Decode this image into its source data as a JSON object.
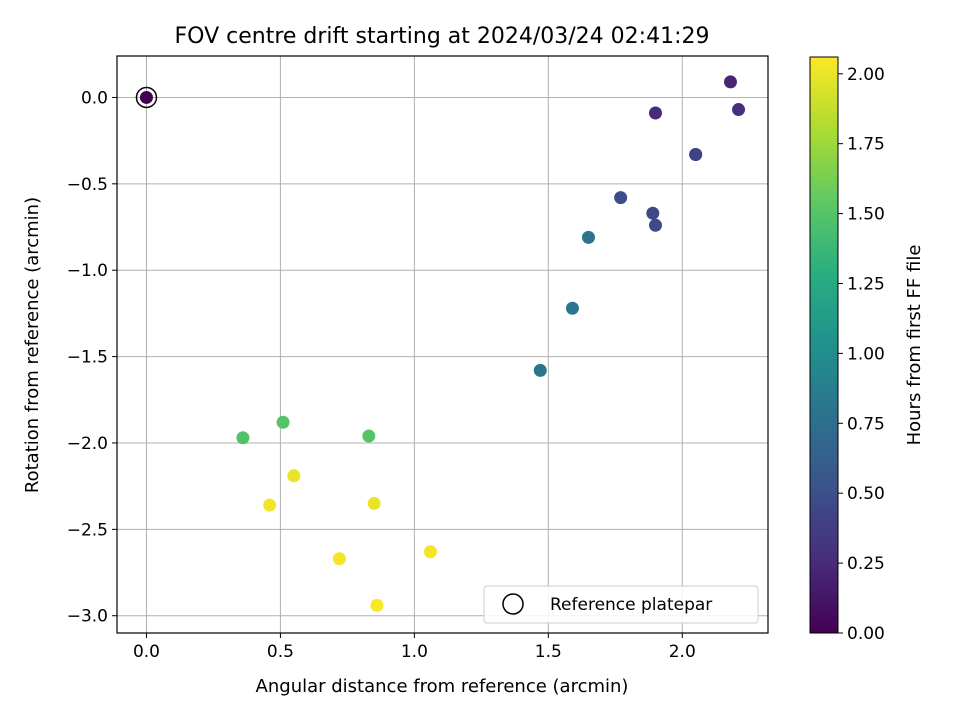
{
  "chart_data": {
    "type": "scatter",
    "title": "FOV centre drift starting at 2024/03/24 02:41:29",
    "xlabel": "Angular distance from reference (arcmin)",
    "ylabel": "Rotation from reference (arcmin)",
    "xlim": [
      -0.11,
      2.32
    ],
    "ylim": [
      -3.1,
      0.24
    ],
    "xticks": [
      0.0,
      0.5,
      1.0,
      1.5,
      2.0
    ],
    "xtick_labels": [
      "0.0",
      "0.5",
      "1.0",
      "1.5",
      "2.0"
    ],
    "yticks": [
      0.0,
      -0.5,
      -1.0,
      -1.5,
      -2.0,
      -2.5,
      -3.0
    ],
    "ytick_labels": [
      "0.0",
      "−0.5",
      "−1.0",
      "−1.5",
      "−2.0",
      "−2.5",
      "−3.0"
    ],
    "grid": true,
    "colormap": "viridis",
    "colorbar": {
      "label": "Hours from first FF file",
      "min": 0.0,
      "max": 2.06,
      "ticks": [
        0.0,
        0.25,
        0.5,
        0.75,
        1.0,
        1.25,
        1.5,
        1.75,
        2.0
      ],
      "tick_labels": [
        "0.00",
        "0.25",
        "0.50",
        "0.75",
        "1.00",
        "1.25",
        "1.50",
        "1.75",
        "2.00"
      ]
    },
    "points": [
      {
        "x": 0.0,
        "y": 0.0,
        "hours": 0.0
      },
      {
        "x": 2.18,
        "y": 0.09,
        "hours": 0.22
      },
      {
        "x": 1.9,
        "y": -0.09,
        "hours": 0.25
      },
      {
        "x": 2.21,
        "y": -0.07,
        "hours": 0.27
      },
      {
        "x": 2.05,
        "y": -0.33,
        "hours": 0.38
      },
      {
        "x": 2.05,
        "y": -0.33,
        "hours": 0.42
      },
      {
        "x": 1.77,
        "y": -0.58,
        "hours": 0.48
      },
      {
        "x": 1.89,
        "y": -0.67,
        "hours": 0.45
      },
      {
        "x": 1.9,
        "y": -0.74,
        "hours": 0.45
      },
      {
        "x": 1.65,
        "y": -0.81,
        "hours": 0.78
      },
      {
        "x": 1.59,
        "y": -1.22,
        "hours": 0.8
      },
      {
        "x": 1.47,
        "y": -1.58,
        "hours": 0.78
      },
      {
        "x": 0.51,
        "y": -1.88,
        "hours": 1.5
      },
      {
        "x": 0.36,
        "y": -1.97,
        "hours": 1.48
      },
      {
        "x": 0.83,
        "y": -1.96,
        "hours": 1.5
      },
      {
        "x": 0.55,
        "y": -2.19,
        "hours": 2.0
      },
      {
        "x": 0.46,
        "y": -2.36,
        "hours": 2.02
      },
      {
        "x": 0.85,
        "y": -2.35,
        "hours": 2.0
      },
      {
        "x": 0.72,
        "y": -2.67,
        "hours": 2.03
      },
      {
        "x": 1.06,
        "y": -2.63,
        "hours": 2.03
      },
      {
        "x": 0.86,
        "y": -2.94,
        "hours": 2.05
      }
    ],
    "reference_marker": {
      "x": 0.0,
      "y": 0.0,
      "label": "Reference platepar"
    },
    "legend_position": "lower right"
  }
}
